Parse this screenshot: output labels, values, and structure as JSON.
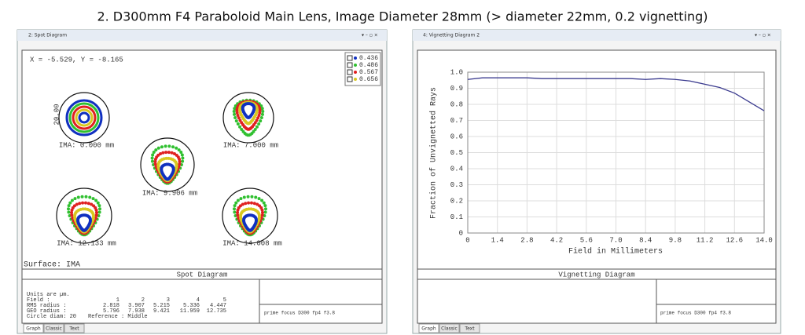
{
  "title": "2. D300mm F4 Paraboloid Main Lens, Image Diameter 28mm (> diameter 22mm, 0.2 vignetting)",
  "spot_window": {
    "title": "2: Spot Diagram",
    "coords": "X = -5.529, Y = -8.165",
    "scale": "20.00",
    "legend": [
      "0.436",
      "0.486",
      "0.567",
      "0.656"
    ],
    "fields": [
      "IMA: 0.000 mm",
      "IMA: 7.000 mm",
      "IMA: 9.906 mm",
      "IMA: 12.133 mm",
      "IMA: 14.008 mm"
    ],
    "surface": "Surface: IMA",
    "panel_title": "Spot Diagram",
    "table": {
      "note": "Units are µm.",
      "header": [
        "Field     :",
        "1",
        "2",
        "3",
        "4",
        "5"
      ],
      "rows": [
        [
          "RMS radius :",
          "2.818",
          "3.907",
          "5.215",
          "5.336",
          "4.447"
        ],
        [
          "GEO radius :",
          "5.796",
          "7.938",
          "9.421",
          "11.959",
          "12.735"
        ]
      ],
      "footer": [
        "Circle diam: 20",
        "Reference  : Middle"
      ]
    },
    "description": "prime focus D300 fp4 f3.8",
    "tabs": [
      "Graph",
      "Classic",
      "Text"
    ]
  },
  "vignetting_window": {
    "title": "4: Vignetting Diagram 2",
    "panel_title": "Vignetting Diagram",
    "description": "prime focus D300 fp4 f3.8",
    "tabs": [
      "Graph",
      "Classic",
      "Text"
    ]
  },
  "chart_data": {
    "type": "line",
    "xlabel": "Field in Millimeters",
    "ylabel": "Fraction of Unvignetted Rays",
    "x": [
      0,
      0.7,
      1.4,
      2.1,
      2.8,
      3.5,
      4.2,
      4.9,
      5.6,
      6.3,
      7.0,
      7.7,
      8.4,
      9.1,
      9.8,
      10.5,
      11.2,
      11.9,
      12.6,
      13.3,
      14.0
    ],
    "values": [
      0.955,
      0.965,
      0.965,
      0.965,
      0.965,
      0.96,
      0.96,
      0.96,
      0.96,
      0.96,
      0.96,
      0.96,
      0.955,
      0.96,
      0.955,
      0.945,
      0.925,
      0.905,
      0.87,
      0.815,
      0.76
    ],
    "color": "#3b3b8f",
    "xlim": [
      0,
      14
    ],
    "ylim": [
      0,
      1
    ],
    "xticks": [
      0,
      1.4,
      2.8,
      4.2,
      5.6,
      {
        "value": 7,
        "label": "7.0"
      },
      8.4,
      9.8,
      11.2,
      12.6,
      {
        "value": 14,
        "label": "14.0"
      }
    ],
    "yticks": [
      0,
      0.1,
      0.2,
      0.3,
      0.4,
      0.5,
      0.6,
      0.7,
      0.8,
      0.9,
      {
        "value": 1,
        "label": "1.0"
      }
    ],
    "grid": true
  }
}
